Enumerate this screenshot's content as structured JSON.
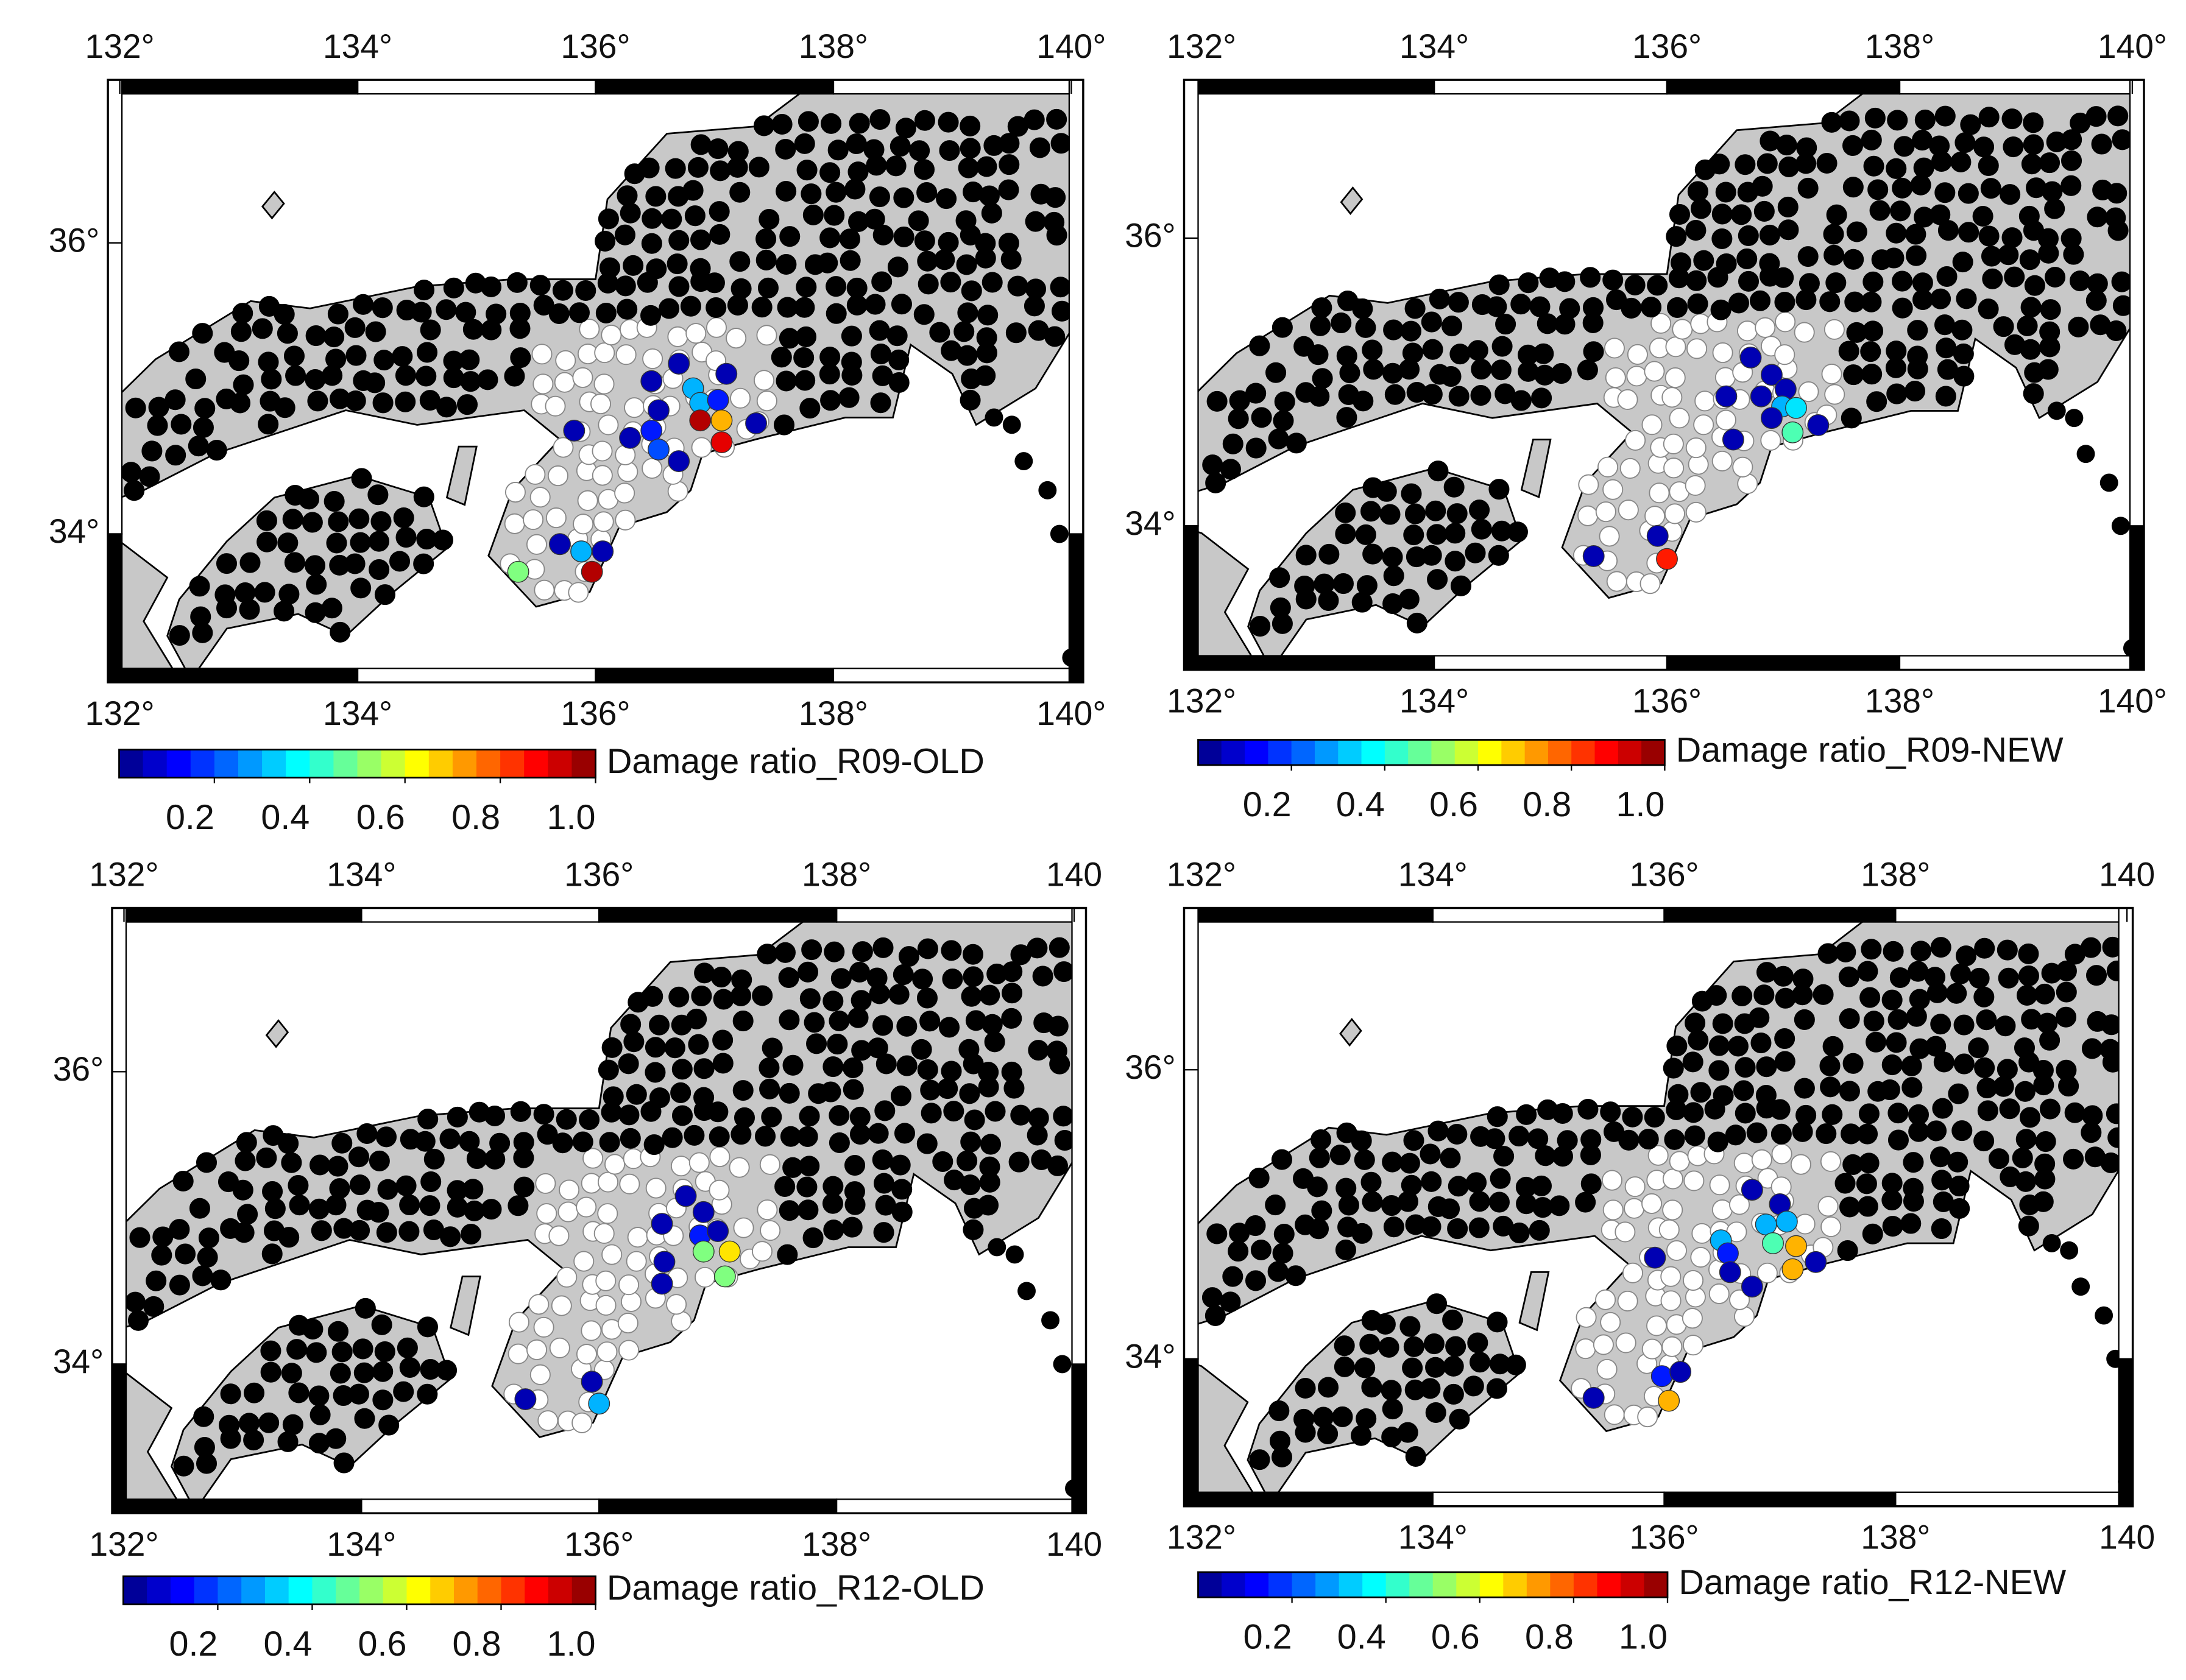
{
  "chart_data": [
    {
      "type": "map",
      "colormap": "jet",
      "colorbar_steps": 20,
      "colorbar_label": "Damage ratio_R09-OLD",
      "xlim": [
        131.9,
        140.1
      ],
      "ylim": [
        32.98,
        37.12
      ],
      "xticks": [
        {
          "value": 132,
          "label": "132°"
        },
        {
          "value": 134,
          "label": "134°"
        },
        {
          "value": 136,
          "label": "136°"
        },
        {
          "value": 138,
          "label": "138°"
        },
        {
          "value": 140,
          "label": "140°"
        }
      ],
      "yticks": [
        {
          "value": 34,
          "label": "34°"
        },
        {
          "value": 36,
          "label": "36°"
        }
      ],
      "colorbar_lim": [
        0,
        1
      ],
      "colorbar_ticks": [
        0.2,
        0.4,
        0.6,
        0.8,
        {
          "value": 1,
          "label": "1.0"
        }
      ],
      "points": [
        {
          "lon": 136.47,
          "lat": 35.05,
          "value": 0.05
        },
        {
          "lon": 136.7,
          "lat": 35.17,
          "value": 0.05
        },
        {
          "lon": 136.82,
          "lat": 35.0,
          "value": 0.3
        },
        {
          "lon": 137.1,
          "lat": 35.1,
          "value": 0.05
        },
        {
          "lon": 136.53,
          "lat": 34.85,
          "value": 0.05
        },
        {
          "lon": 136.88,
          "lat": 34.9,
          "value": 0.3
        },
        {
          "lon": 137.03,
          "lat": 34.92,
          "value": 0.15
        },
        {
          "lon": 136.88,
          "lat": 34.78,
          "value": 0.95
        },
        {
          "lon": 137.06,
          "lat": 34.78,
          "value": 0.7
        },
        {
          "lon": 136.47,
          "lat": 34.71,
          "value": 0.15
        },
        {
          "lon": 136.53,
          "lat": 34.58,
          "value": 0.2
        },
        {
          "lon": 137.06,
          "lat": 34.63,
          "value": 0.9
        },
        {
          "lon": 137.35,
          "lat": 34.76,
          "value": 0.05
        },
        {
          "lon": 135.82,
          "lat": 34.71,
          "value": 0.05
        },
        {
          "lon": 136.29,
          "lat": 34.66,
          "value": 0.05
        },
        {
          "lon": 136.7,
          "lat": 34.5,
          "value": 0.05
        },
        {
          "lon": 135.7,
          "lat": 33.93,
          "value": 0.05
        },
        {
          "lon": 136.06,
          "lat": 33.88,
          "value": 0.05
        },
        {
          "lon": 135.88,
          "lat": 33.88,
          "value": 0.3
        },
        {
          "lon": 135.35,
          "lat": 33.74,
          "value": 0.5
        },
        {
          "lon": 135.97,
          "lat": 33.74,
          "value": 0.95
        }
      ]
    },
    {
      "type": "map",
      "colormap": "jet",
      "colorbar_steps": 20,
      "colorbar_label": "Damage ratio_R09-NEW",
      "xlim": [
        131.85,
        140.1
      ],
      "ylim": [
        33.0,
        37.1
      ],
      "xticks": [
        {
          "value": 132,
          "label": "132°"
        },
        {
          "value": 134,
          "label": "134°"
        },
        {
          "value": 136,
          "label": "136°"
        },
        {
          "value": 138,
          "label": "138°"
        },
        {
          "value": 140,
          "label": "140°"
        }
      ],
      "yticks": [
        {
          "value": 34,
          "label": "34°"
        },
        {
          "value": 36,
          "label": "36°"
        }
      ],
      "colorbar_lim": [
        0,
        1
      ],
      "colorbar_ticks": [
        0.2,
        0.4,
        0.6,
        0.8,
        {
          "value": 1,
          "label": "1.0"
        }
      ],
      "points": [
        {
          "lon": 136.72,
          "lat": 35.17,
          "value": 0.05
        },
        {
          "lon": 136.9,
          "lat": 35.05,
          "value": 0.05
        },
        {
          "lon": 137.02,
          "lat": 34.95,
          "value": 0.05
        },
        {
          "lon": 136.51,
          "lat": 34.9,
          "value": 0.05
        },
        {
          "lon": 136.81,
          "lat": 34.9,
          "value": 0.05
        },
        {
          "lon": 136.99,
          "lat": 34.83,
          "value": 0.3
        },
        {
          "lon": 137.11,
          "lat": 34.82,
          "value": 0.35
        },
        {
          "lon": 136.9,
          "lat": 34.75,
          "value": 0.05
        },
        {
          "lon": 137.08,
          "lat": 34.65,
          "value": 0.45
        },
        {
          "lon": 137.3,
          "lat": 34.7,
          "value": 0.05
        },
        {
          "lon": 136.57,
          "lat": 34.6,
          "value": 0.05
        },
        {
          "lon": 135.92,
          "lat": 33.93,
          "value": 0.05
        },
        {
          "lon": 135.37,
          "lat": 33.79,
          "value": 0.05
        },
        {
          "lon": 136.0,
          "lat": 33.77,
          "value": 0.85
        }
      ]
    },
    {
      "type": "map",
      "colormap": "jet",
      "colorbar_steps": 20,
      "colorbar_label": "Damage ratio_R12-OLD",
      "xlim": [
        131.9,
        140.1
      ],
      "ylim": [
        32.98,
        37.12
      ],
      "xticks": [
        {
          "value": 132,
          "label": "132°"
        },
        {
          "value": 134,
          "label": "134°"
        },
        {
          "value": 136,
          "label": "136°"
        },
        {
          "value": 138,
          "label": "138°"
        },
        {
          "value": 140,
          "label": "140"
        }
      ],
      "yticks": [
        {
          "value": 34,
          "label": "34°"
        },
        {
          "value": 36,
          "label": "36°"
        }
      ],
      "colorbar_lim": [
        0,
        1
      ],
      "colorbar_ticks": [
        0.2,
        0.4,
        0.6,
        0.8,
        {
          "value": 1,
          "label": "1.0"
        }
      ],
      "points": [
        {
          "lon": 136.73,
          "lat": 35.15,
          "value": 0.05
        },
        {
          "lon": 136.88,
          "lat": 35.04,
          "value": 0.05
        },
        {
          "lon": 136.53,
          "lat": 34.96,
          "value": 0.05
        },
        {
          "lon": 136.85,
          "lat": 34.88,
          "value": 0.15
        },
        {
          "lon": 137.0,
          "lat": 34.91,
          "value": 0.05
        },
        {
          "lon": 136.88,
          "lat": 34.77,
          "value": 0.5
        },
        {
          "lon": 137.1,
          "lat": 34.77,
          "value": 0.65
        },
        {
          "lon": 136.55,
          "lat": 34.7,
          "value": 0.05
        },
        {
          "lon": 137.06,
          "lat": 34.6,
          "value": 0.5
        },
        {
          "lon": 136.53,
          "lat": 34.55,
          "value": 0.05
        },
        {
          "lon": 135.94,
          "lat": 33.88,
          "value": 0.05
        },
        {
          "lon": 135.38,
          "lat": 33.76,
          "value": 0.05
        },
        {
          "lon": 136.0,
          "lat": 33.73,
          "value": 0.3
        }
      ]
    },
    {
      "type": "map",
      "colormap": "jet",
      "colorbar_steps": 20,
      "colorbar_label": "Damage ratio_R12-NEW",
      "xlim": [
        131.85,
        140.05
      ],
      "ylim": [
        32.98,
        37.12
      ],
      "xticks": [
        {
          "value": 132,
          "label": "132°"
        },
        {
          "value": 134,
          "label": "134°"
        },
        {
          "value": 136,
          "label": "136°"
        },
        {
          "value": 138,
          "label": "138°"
        },
        {
          "value": 140,
          "label": "140"
        }
      ],
      "yticks": [
        {
          "value": 34,
          "label": "34°"
        },
        {
          "value": 36,
          "label": "36°"
        }
      ],
      "colorbar_lim": [
        0,
        1
      ],
      "colorbar_ticks": [
        0.2,
        0.4,
        0.6,
        0.8,
        {
          "value": 1,
          "label": "1.0"
        }
      ],
      "points": [
        {
          "lon": 136.76,
          "lat": 35.17,
          "value": 0.05
        },
        {
          "lon": 137.0,
          "lat": 35.07,
          "value": 0.05
        },
        {
          "lon": 136.88,
          "lat": 34.93,
          "value": 0.3
        },
        {
          "lon": 137.06,
          "lat": 34.95,
          "value": 0.3
        },
        {
          "lon": 136.49,
          "lat": 34.82,
          "value": 0.3
        },
        {
          "lon": 136.94,
          "lat": 34.8,
          "value": 0.45
        },
        {
          "lon": 137.14,
          "lat": 34.78,
          "value": 0.7
        },
        {
          "lon": 136.55,
          "lat": 34.73,
          "value": 0.15
        },
        {
          "lon": 135.92,
          "lat": 34.7,
          "value": 0.05
        },
        {
          "lon": 136.57,
          "lat": 34.6,
          "value": 0.05
        },
        {
          "lon": 137.11,
          "lat": 34.62,
          "value": 0.7
        },
        {
          "lon": 137.31,
          "lat": 34.67,
          "value": 0.05
        },
        {
          "lon": 136.76,
          "lat": 34.5,
          "value": 0.05
        },
        {
          "lon": 135.98,
          "lat": 33.88,
          "value": 0.15
        },
        {
          "lon": 136.14,
          "lat": 33.91,
          "value": 0.05
        },
        {
          "lon": 135.39,
          "lat": 33.73,
          "value": 0.05
        },
        {
          "lon": 136.04,
          "lat": 33.71,
          "value": 0.7
        }
      ]
    }
  ]
}
